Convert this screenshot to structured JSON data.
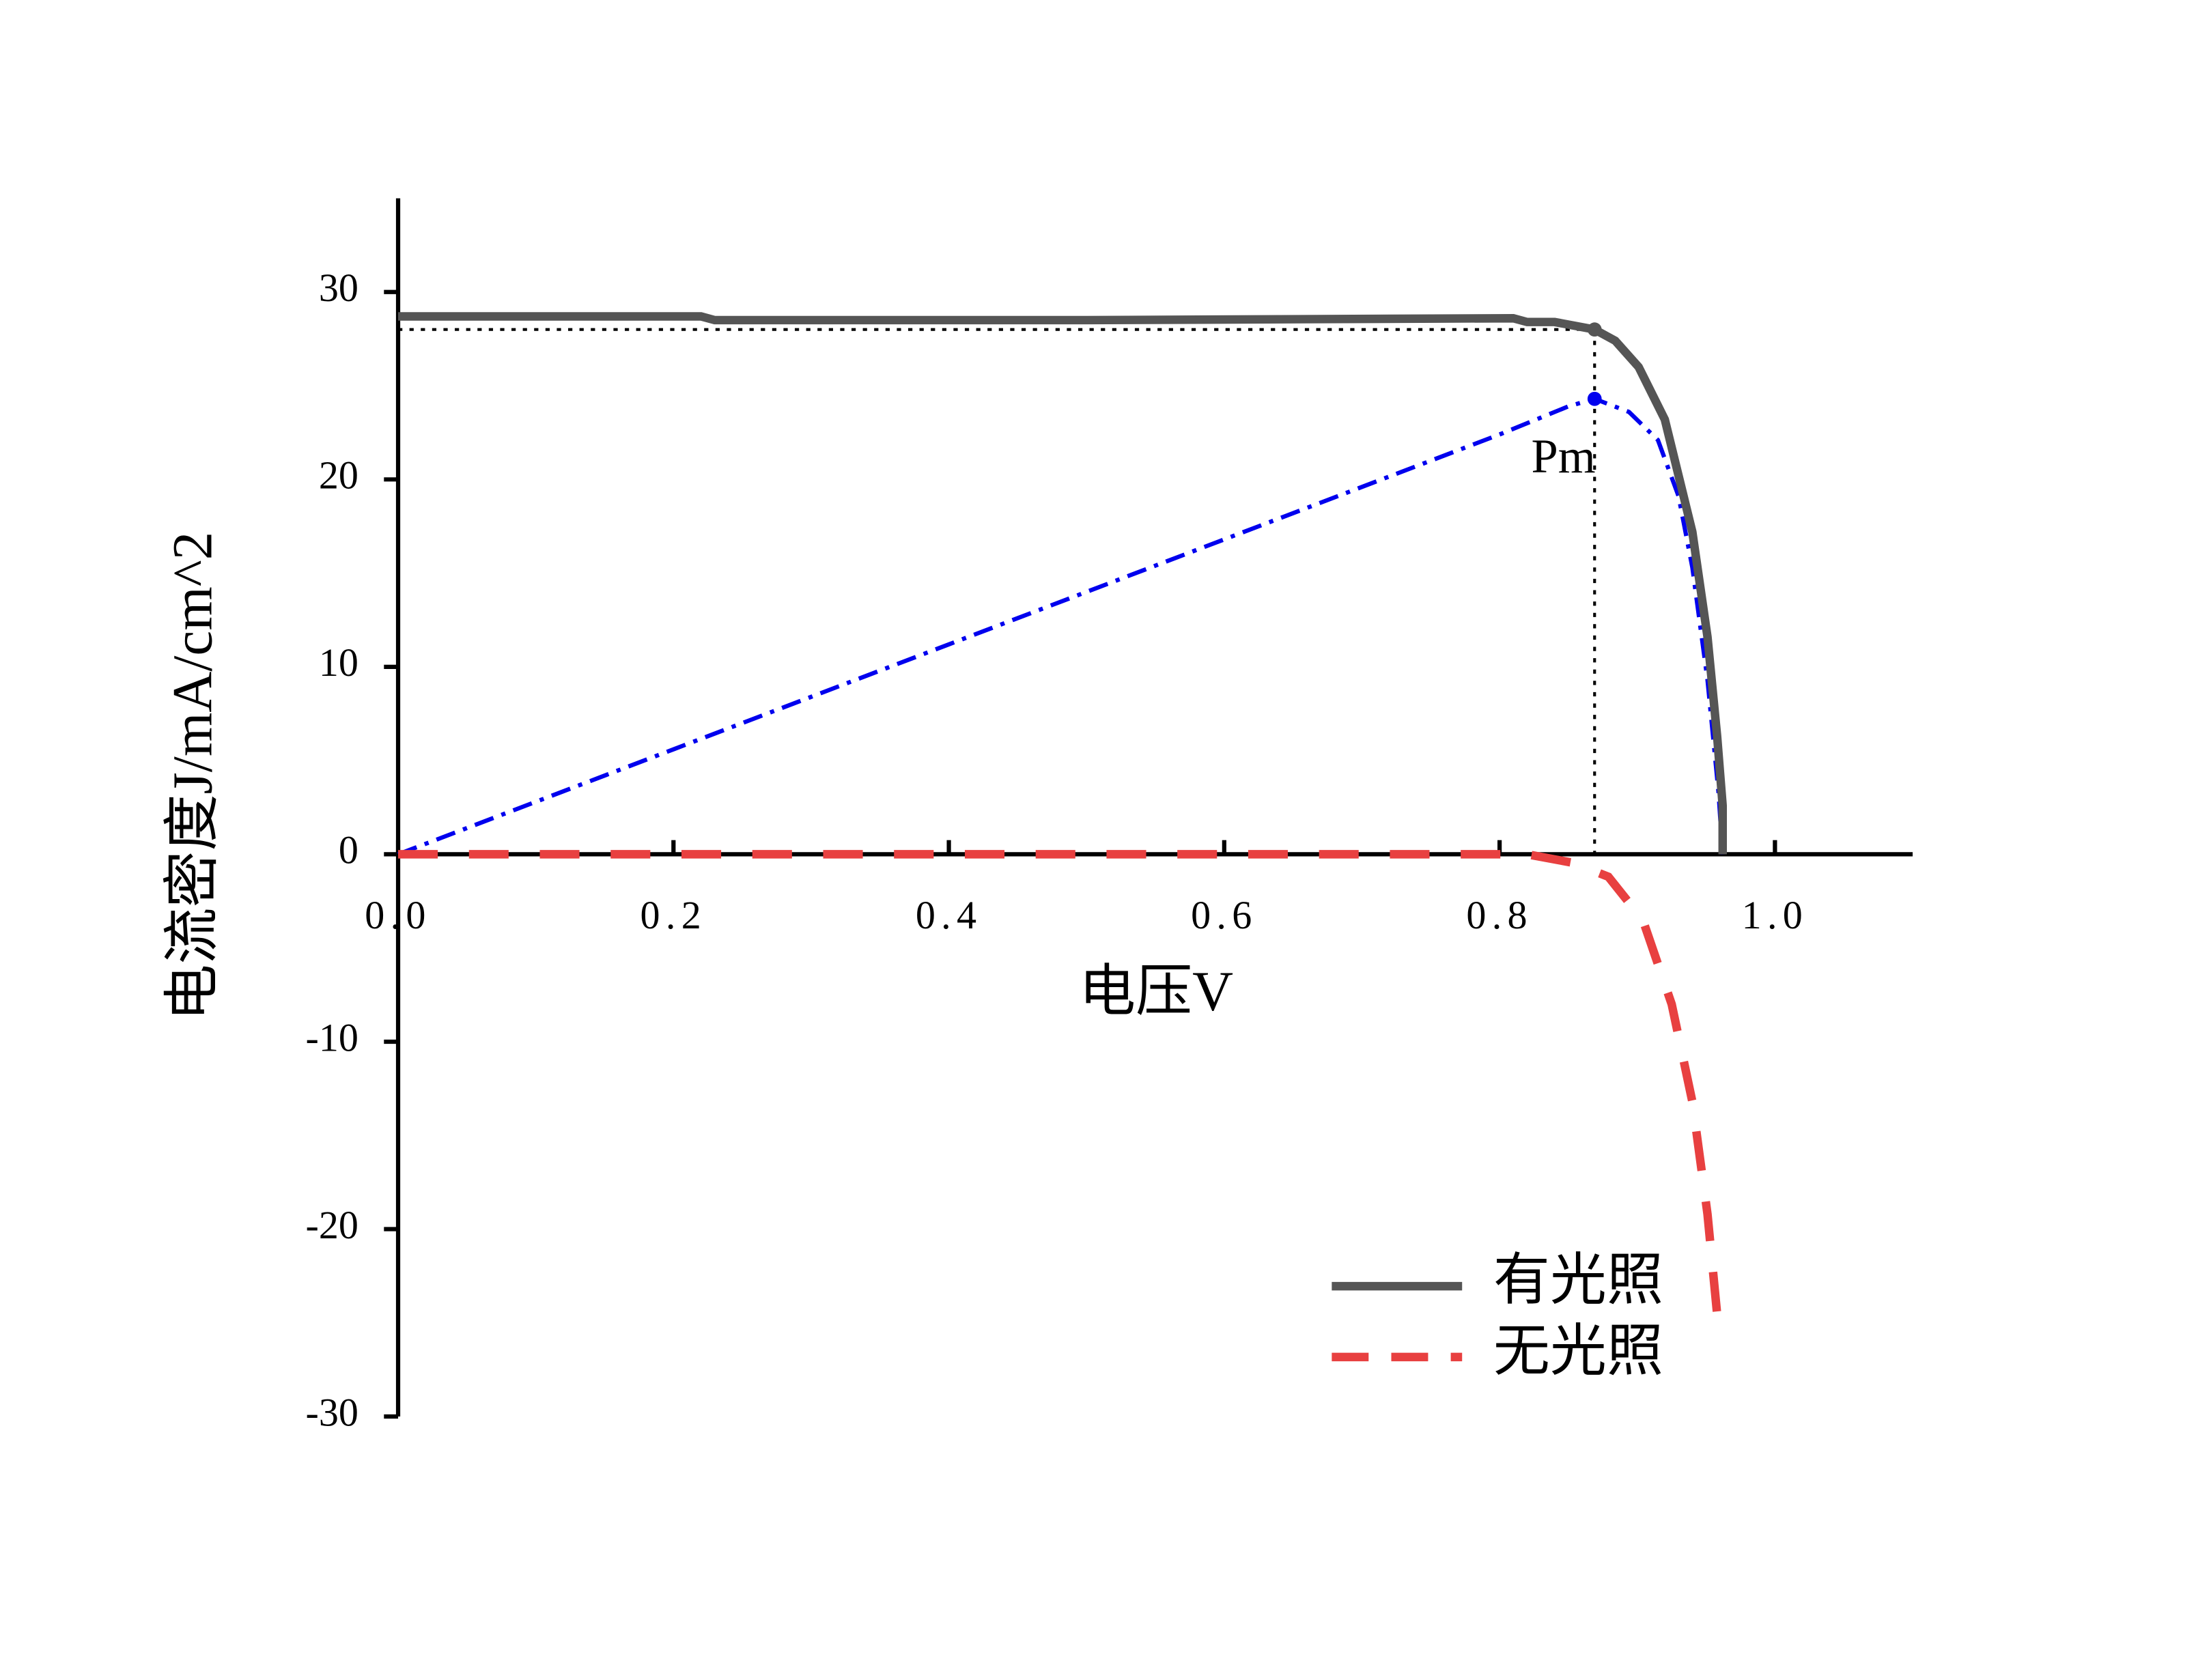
{
  "chart_data": {
    "type": "line",
    "xlabel": "电压V",
    "ylabel": "电流密度J/mA/cm^2",
    "xlim": [
      0,
      1.1
    ],
    "ylim": [
      -30,
      35
    ],
    "xticks": [
      {
        "value": 0,
        "label": "0.0"
      },
      0.2,
      0.4,
      0.6,
      0.8,
      {
        "value": 1,
        "label": "1.0"
      }
    ],
    "yticks": [
      -30,
      -20,
      -10,
      0,
      10,
      20,
      30
    ],
    "legend": "lower right",
    "series": [
      {
        "name": "有光照",
        "color": "#555555",
        "style": "solid",
        "x": [
          0,
          0.1,
          0.22,
          0.23,
          0.5,
          0.81,
          0.82,
          0.84,
          0.869,
          0.884,
          0.901,
          0.92,
          0.94,
          0.951,
          0.958,
          0.962,
          0.962
        ],
        "values": [
          28.7,
          28.7,
          28.7,
          28.5,
          28.5,
          28.6,
          28.4,
          28.4,
          28.0,
          27.4,
          26.0,
          23.2,
          17.2,
          11.6,
          6.3,
          2.6,
          0
        ]
      },
      {
        "name": "无光照",
        "color": "#e84040",
        "style": "dashed",
        "x": [
          0,
          0.2,
          0.4,
          0.6,
          0.82,
          0.853,
          0.879,
          0.904,
          0.925,
          0.94,
          0.951,
          0.959
        ],
        "values": [
          0,
          0,
          0,
          0,
          0,
          -0.45,
          -1.2,
          -3.5,
          -8.0,
          -13.2,
          -19.2,
          -25.3
        ]
      }
    ],
    "power_curve": {
      "color": "#0000ee",
      "x": [
        0,
        0.2,
        0.4,
        0.6,
        0.8,
        0.85,
        0.869,
        0.894,
        0.915,
        0.93,
        0.94,
        0.951,
        0.959,
        0.962
      ],
      "values": [
        0,
        5.6,
        11.2,
        16.8,
        22.4,
        23.9,
        24.3,
        23.6,
        22.1,
        19.1,
        15.3,
        9.3,
        3.3,
        0
      ]
    },
    "mpp": {
      "label": "Pm",
      "x": 0.869,
      "j": 28.0,
      "p": 24.3
    }
  }
}
